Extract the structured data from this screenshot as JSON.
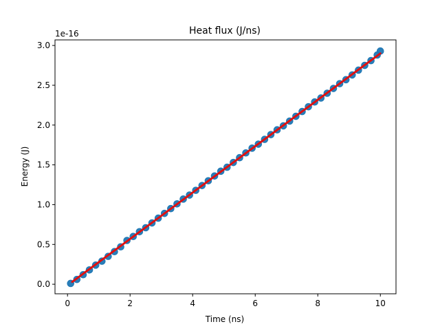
{
  "chart_data": {
    "type": "scatter",
    "title": "Heat flux (J/ns)",
    "xlabel": "Time (ns)",
    "ylabel": "Energy (J)",
    "y_offset_label": "1e-16",
    "xlim": [
      -0.4,
      10.5
    ],
    "ylim": [
      -0.12,
      3.07
    ],
    "y_scale_note": "values shown in units of 1e-16 J",
    "x_ticks": [
      {
        "value": 0,
        "label": "0"
      },
      {
        "value": 2,
        "label": "2"
      },
      {
        "value": 4,
        "label": "4"
      },
      {
        "value": 6,
        "label": "6"
      },
      {
        "value": 8,
        "label": "8"
      },
      {
        "value": 10,
        "label": "10"
      }
    ],
    "y_ticks": [
      {
        "value": 0.0,
        "label": "0.0"
      },
      {
        "value": 0.5,
        "label": "0.5"
      },
      {
        "value": 1.0,
        "label": "1.0"
      },
      {
        "value": 1.5,
        "label": "1.5"
      },
      {
        "value": 2.0,
        "label": "2.0"
      },
      {
        "value": 2.5,
        "label": "2.5"
      },
      {
        "value": 3.0,
        "label": "3.0"
      }
    ],
    "grid": false,
    "legend": "none",
    "series": [
      {
        "kind": "scatter",
        "color": "#1f77b4",
        "x": [
          0.1,
          0.3,
          0.5,
          0.7,
          0.9,
          1.1,
          1.3,
          1.5,
          1.7,
          1.9,
          2.1,
          2.3,
          2.5,
          2.7,
          2.9,
          3.1,
          3.3,
          3.5,
          3.7,
          3.9,
          4.1,
          4.3,
          4.5,
          4.7,
          4.9,
          5.1,
          5.3,
          5.5,
          5.7,
          5.9,
          6.1,
          6.3,
          6.5,
          6.7,
          6.9,
          7.1,
          7.3,
          7.5,
          7.7,
          7.9,
          8.1,
          8.3,
          8.5,
          8.7,
          8.9,
          9.1,
          9.3,
          9.5,
          9.7,
          9.9,
          10.0
        ],
        "y": [
          0.01,
          0.06,
          0.12,
          0.18,
          0.24,
          0.29,
          0.35,
          0.41,
          0.47,
          0.55,
          0.6,
          0.66,
          0.71,
          0.77,
          0.83,
          0.89,
          0.95,
          1.01,
          1.07,
          1.12,
          1.18,
          1.24,
          1.3,
          1.36,
          1.42,
          1.47,
          1.53,
          1.59,
          1.65,
          1.71,
          1.76,
          1.82,
          1.88,
          1.94,
          1.99,
          2.05,
          2.11,
          2.17,
          2.23,
          2.29,
          2.34,
          2.4,
          2.46,
          2.52,
          2.57,
          2.63,
          2.69,
          2.75,
          2.81,
          2.88,
          2.93
        ]
      },
      {
        "kind": "line",
        "color": "#e01010",
        "x": [
          0.15,
          10.0
        ],
        "y": [
          0.03,
          2.9
        ]
      }
    ]
  }
}
